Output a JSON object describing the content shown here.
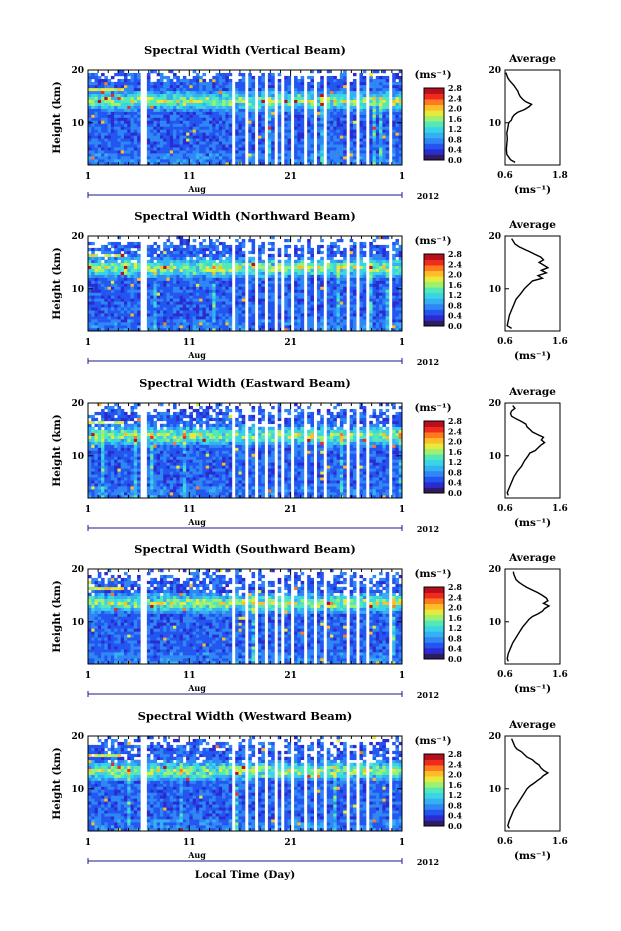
{
  "chart_data": {
    "type": "heatmap",
    "xlabel": "Local Time (Day)",
    "month_label": "Aug",
    "year_label": "2012",
    "x_ticks": [
      "1",
      "11",
      "21",
      "1"
    ],
    "xlim_day": [
      1,
      32
    ],
    "ylabel": "Height (km)",
    "ylim_km": [
      2,
      20
    ],
    "y_ticks": [
      "20",
      "10"
    ],
    "colorbar": {
      "unit": "(ms⁻¹)",
      "ticks": [
        "2.8",
        "2.4",
        "2.0",
        "1.6",
        "1.2",
        "0.8",
        "0.4",
        "0.0"
      ],
      "range": [
        0,
        2.8
      ],
      "colors": [
        "#301a60",
        "#2a2bd0",
        "#2356f0",
        "#2f86f5",
        "#35b0f2",
        "#39d4e6",
        "#52e8b8",
        "#9df070",
        "#e6ea3c",
        "#ffbc28",
        "#ff7a1e",
        "#ef2a1e",
        "#b80f1c"
      ]
    },
    "data_gaps_day": [
      [
        6.2,
        6.7
      ],
      [
        15.3,
        15.6
      ],
      [
        16.5,
        16.8
      ],
      [
        17.4,
        17.7
      ],
      [
        18.3,
        18.6
      ],
      [
        19.3,
        19.6
      ],
      [
        20.2,
        20.5
      ],
      [
        21.1,
        21.4
      ],
      [
        22.2,
        22.5
      ],
      [
        23.3,
        23.6
      ],
      [
        24.4,
        24.7
      ],
      [
        25.4,
        25.7
      ],
      [
        26.5,
        26.8
      ],
      [
        27.5,
        27.8
      ],
      [
        28.6,
        28.9
      ],
      [
        29.6,
        29.9
      ],
      [
        30.6,
        30.9
      ]
    ],
    "panels": [
      {
        "title": "Spectral Width (Vertical Beam)",
        "average": {
          "title": "Average",
          "xlim": [
            0.6,
            1.8
          ],
          "x_ticks": [
            "0.6",
            "1.8"
          ],
          "unit": "(ms⁻¹)",
          "height_km": [
            2.5,
            3.0,
            4,
            5,
            6,
            7,
            8,
            9,
            10,
            10.5,
            11,
            11.5,
            12,
            12.5,
            13,
            13.5,
            14,
            14.5,
            15,
            15.5,
            16,
            16.5,
            17,
            17.5,
            18,
            18.5,
            19,
            19.5
          ],
          "width_ms": [
            0.82,
            0.72,
            0.64,
            0.63,
            0.64,
            0.65,
            0.64,
            0.66,
            0.68,
            0.74,
            0.76,
            0.8,
            0.88,
            1.02,
            1.12,
            1.18,
            1.05,
            0.98,
            0.93,
            0.9,
            0.88,
            0.84,
            0.8,
            0.75,
            0.7,
            0.66,
            0.64,
            0.62
          ]
        }
      },
      {
        "title": "Spectral Width (Northward Beam)",
        "average": {
          "title": "Average",
          "xlim": [
            0.6,
            1.6
          ],
          "x_ticks": [
            "0.6",
            "1.6"
          ],
          "unit": "(ms⁻¹)",
          "height_km": [
            2.5,
            3.0,
            4,
            5,
            6,
            7,
            8,
            9,
            10,
            10.5,
            11,
            11.5,
            12,
            12.5,
            13,
            13.5,
            14,
            14.5,
            15,
            15.5,
            16,
            16.5,
            17,
            17.5,
            18,
            18.5,
            19,
            19.5
          ],
          "width_ms": [
            0.72,
            0.64,
            0.66,
            0.68,
            0.72,
            0.76,
            0.8,
            0.88,
            0.95,
            1.0,
            1.05,
            1.1,
            1.28,
            1.2,
            1.35,
            1.26,
            1.38,
            1.3,
            1.22,
            1.3,
            1.25,
            1.15,
            1.05,
            0.95,
            0.85,
            0.78,
            0.75,
            0.72
          ]
        }
      },
      {
        "title": "Spectral Width (Eastward Beam)",
        "average": {
          "title": "Average",
          "xlim": [
            0.6,
            1.6
          ],
          "x_ticks": [
            "0.6",
            "1.6"
          ],
          "unit": "(ms⁻¹)",
          "height_km": [
            2.5,
            3.0,
            4,
            5,
            6,
            7,
            8,
            9,
            10,
            10.5,
            11,
            11.5,
            12,
            12.5,
            13,
            13.5,
            14,
            14.5,
            15,
            15.5,
            16,
            16.5,
            17,
            17.5,
            18,
            18.5,
            19,
            19.5
          ],
          "width_ms": [
            0.66,
            0.64,
            0.68,
            0.72,
            0.76,
            0.82,
            0.9,
            0.95,
            1.02,
            1.05,
            1.15,
            1.2,
            1.25,
            1.32,
            1.26,
            1.3,
            1.2,
            1.1,
            1.05,
            1.0,
            0.98,
            0.9,
            0.8,
            0.72,
            0.7,
            0.72,
            0.78,
            0.74
          ]
        }
      },
      {
        "title": "Spectral Width (Southward Beam)",
        "average": {
          "title": "Average",
          "xlim": [
            0.6,
            1.6
          ],
          "x_ticks": [
            "0.6",
            "1.6"
          ],
          "unit": "(ms⁻¹)",
          "height_km": [
            2.5,
            3.0,
            4,
            5,
            6,
            7,
            8,
            9,
            10,
            10.5,
            11,
            11.5,
            12,
            12.5,
            13,
            13.5,
            14,
            14.5,
            15,
            15.5,
            16,
            16.5,
            17,
            17.5,
            18,
            18.5,
            19,
            19.5
          ],
          "width_ms": [
            0.66,
            0.64,
            0.66,
            0.7,
            0.74,
            0.8,
            0.86,
            0.92,
            1.0,
            1.04,
            1.1,
            1.2,
            1.28,
            1.32,
            1.4,
            1.3,
            1.38,
            1.35,
            1.28,
            1.2,
            1.1,
            1.0,
            0.92,
            0.85,
            0.8,
            0.78,
            0.76,
            0.75
          ]
        }
      },
      {
        "title": "Spectral Width (Westward Beam)",
        "average": {
          "title": "Average",
          "xlim": [
            0.6,
            1.6
          ],
          "x_ticks": [
            "0.6",
            "1.6"
          ],
          "unit": "(ms⁻¹)",
          "height_km": [
            2.5,
            3.0,
            4,
            5,
            6,
            7,
            8,
            9,
            10,
            10.5,
            11,
            11.5,
            12,
            12.5,
            13,
            13.5,
            14,
            14.5,
            15,
            15.5,
            16,
            16.5,
            17,
            17.5,
            18,
            18.5,
            19,
            19.5
          ],
          "width_ms": [
            0.68,
            0.65,
            0.68,
            0.72,
            0.76,
            0.82,
            0.88,
            0.94,
            1.0,
            1.05,
            1.12,
            1.18,
            1.25,
            1.3,
            1.38,
            1.3,
            1.25,
            1.22,
            1.15,
            1.1,
            1.0,
            0.95,
            0.9,
            0.82,
            0.78,
            0.76,
            0.74,
            0.72
          ]
        }
      }
    ]
  }
}
